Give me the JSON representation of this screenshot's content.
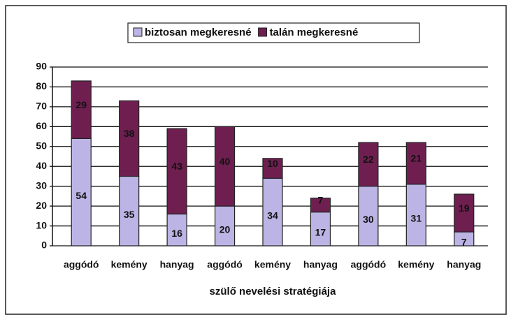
{
  "chart_data": {
    "type": "stacked_bar",
    "categories": [
      "aggódó",
      "kemény",
      "hanyag",
      "aggódó",
      "kemény",
      "hanyag",
      "aggódó",
      "kemény",
      "hanyag"
    ],
    "series": [
      {
        "name": "biztosan megkeresné",
        "color": "#bcb4e4",
        "values": [
          54,
          35,
          16,
          20,
          34,
          17,
          30,
          31,
          7
        ]
      },
      {
        "name": "talán megkeresné",
        "color": "#6e1f50",
        "values": [
          29,
          38,
          43,
          40,
          10,
          7,
          22,
          21,
          19
        ]
      }
    ],
    "xlabel": "szülő nevelési stratégiája",
    "ylim": [
      0,
      90
    ],
    "yticks": [
      0,
      10,
      20,
      30,
      40,
      50,
      60,
      70,
      80,
      90
    ],
    "grid": true,
    "legend": "top"
  }
}
